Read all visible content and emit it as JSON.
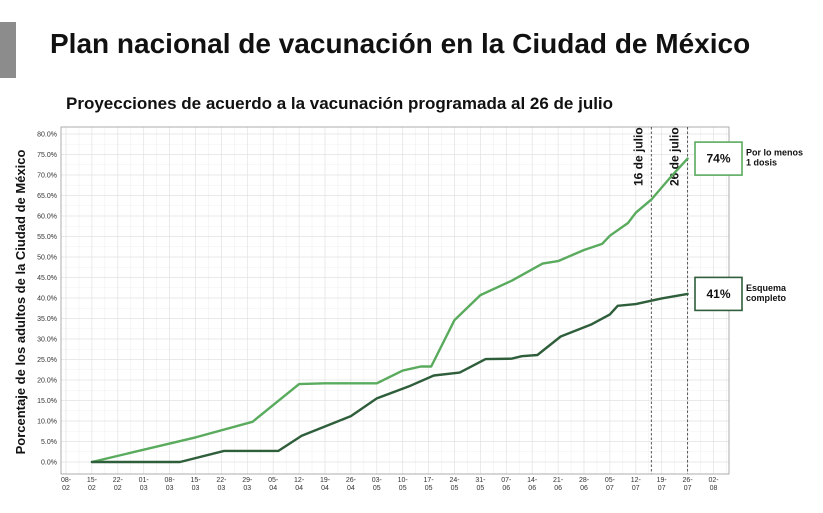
{
  "header": {
    "title": "Plan nacional de vacunación en la Ciudad de México"
  },
  "chart_data": {
    "type": "line",
    "title": "Proyecciones de acuerdo a la vacunación programada al 26 de julio",
    "xlabel": "",
    "ylabel": "Porcentaje de los adultos de la Ciudad de México",
    "ylim": [
      0,
      80
    ],
    "y_ticks": [
      "0.0%",
      "5.0%",
      "10.0%",
      "15.0%",
      "20.0%",
      "25.0%",
      "30.0%",
      "35.0%",
      "40.0%",
      "45.0%",
      "50.0%",
      "55.0%",
      "60.0%",
      "65.0%",
      "70.0%",
      "75.0%",
      "80.0%"
    ],
    "x_ticks": [
      [
        "08-",
        "02"
      ],
      [
        "15-",
        "02"
      ],
      [
        "22-",
        "02"
      ],
      [
        "01-",
        "03"
      ],
      [
        "08-",
        "03"
      ],
      [
        "15-",
        "03"
      ],
      [
        "22-",
        "03"
      ],
      [
        "29-",
        "03"
      ],
      [
        "05-",
        "04"
      ],
      [
        "12-",
        "04"
      ],
      [
        "19-",
        "04"
      ],
      [
        "26-",
        "04"
      ],
      [
        "03-",
        "05"
      ],
      [
        "10-",
        "05"
      ],
      [
        "17-",
        "05"
      ],
      [
        "24-",
        "05"
      ],
      [
        "31-",
        "05"
      ],
      [
        "07-",
        "06"
      ],
      [
        "14-",
        "06"
      ],
      [
        "21-",
        "06"
      ],
      [
        "28-",
        "06"
      ],
      [
        "05-",
        "07"
      ],
      [
        "12-",
        "07"
      ],
      [
        "19-",
        "07"
      ],
      [
        "26-",
        "07"
      ],
      [
        "02-",
        "08"
      ]
    ],
    "grid": true,
    "series": [
      {
        "name": "Por lo menos 1 dosis",
        "color": "#5aab5e",
        "end_label": "74%",
        "points": [
          [
            1,
            0.0
          ],
          [
            5,
            6.0
          ],
          [
            7.2,
            9.8
          ],
          [
            9,
            19.0
          ],
          [
            10,
            19.2
          ],
          [
            12,
            19.2
          ],
          [
            13,
            22.3
          ],
          [
            13.7,
            23.3
          ],
          [
            14.1,
            23.3
          ],
          [
            15,
            34.6
          ],
          [
            16,
            40.7
          ],
          [
            17.2,
            44.2
          ],
          [
            18.4,
            48.4
          ],
          [
            19,
            49.0
          ],
          [
            20,
            51.7
          ],
          [
            20.7,
            53.2
          ],
          [
            21,
            55.2
          ],
          [
            21.7,
            58.3
          ],
          [
            22,
            60.8
          ],
          [
            22.6,
            64.0
          ],
          [
            23.4,
            69.9
          ],
          [
            24,
            74.0
          ]
        ]
      },
      {
        "name": "Esquema completo",
        "color": "#2f5e3b",
        "end_label": "41%",
        "points": [
          [
            1,
            0.0
          ],
          [
            4.4,
            0.0
          ],
          [
            6.1,
            2.7
          ],
          [
            8.2,
            2.7
          ],
          [
            9.1,
            6.4
          ],
          [
            11,
            11.2
          ],
          [
            12,
            15.5
          ],
          [
            13.3,
            18.6
          ],
          [
            14.2,
            21.1
          ],
          [
            15.2,
            21.8
          ],
          [
            16.2,
            25.1
          ],
          [
            17.2,
            25.2
          ],
          [
            17.6,
            25.8
          ],
          [
            18.2,
            26.1
          ],
          [
            19.1,
            30.6
          ],
          [
            20.3,
            33.6
          ],
          [
            21,
            36.0
          ],
          [
            21.3,
            38.1
          ],
          [
            22,
            38.5
          ],
          [
            23,
            39.9
          ],
          [
            24,
            41.0
          ]
        ]
      }
    ],
    "annotations": [
      {
        "x": 22.6,
        "label": "16 de julio"
      },
      {
        "x": 24,
        "label": "26 de julio"
      }
    ],
    "legend_boxes": [
      {
        "value": "74%",
        "label_lines": [
          "Por lo menos",
          "1 dosis"
        ]
      },
      {
        "value": "41%",
        "label_lines": [
          "Esquema",
          "completo"
        ]
      }
    ]
  }
}
